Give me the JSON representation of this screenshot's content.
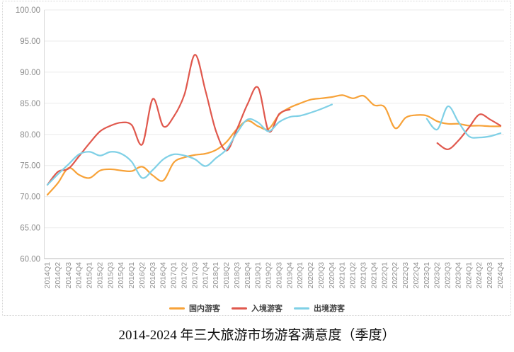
{
  "caption": "2014-2024 年三大旅游市场游客满意度（季度）",
  "chart_data": {
    "type": "line",
    "title": "",
    "legend_position": "bottom",
    "grid": true,
    "x_axis": {
      "label_rotation": -90,
      "categories": [
        "2014Q1",
        "2014Q2",
        "2014Q3",
        "2014Q4",
        "2015Q1",
        "2015Q2",
        "2015Q3",
        "2015Q4",
        "2016Q1",
        "2016Q2",
        "2016Q3",
        "2016Q4",
        "2017Q1",
        "2017Q2",
        "2017Q3",
        "2017Q4",
        "2018Q1",
        "2018Q2",
        "2018Q3",
        "2018Q4",
        "2019Q1",
        "2019Q2",
        "2019Q3",
        "2019Q4",
        "2020Q1",
        "2020Q2",
        "2020Q3",
        "2020Q4",
        "2021Q1",
        "2021Q2",
        "2021Q3",
        "2021Q4",
        "2022Q1",
        "2022Q2",
        "2022Q3",
        "2022Q4",
        "2023Q1",
        "2023Q2",
        "2023Q3",
        "2023Q4",
        "2024Q1",
        "2024Q2",
        "2024Q3",
        "2024Q4"
      ]
    },
    "y_axis": {
      "min": 60,
      "max": 100,
      "tick_step": 5,
      "tick_labels": [
        "100.00",
        "95.00",
        "90.00",
        "85.00",
        "80.00",
        "75.00",
        "70.00",
        "65.00",
        "60.00"
      ]
    },
    "series": [
      {
        "id": "domestic",
        "name": "国内游客",
        "color": "#F7A238",
        "values": [
          70.3,
          72.2,
          74.6,
          73.5,
          73.0,
          74.2,
          74.4,
          74.2,
          74.1,
          74.8,
          73.4,
          72.6,
          75.5,
          76.3,
          76.7,
          76.9,
          77.5,
          78.8,
          80.9,
          82.2,
          81.3,
          80.9,
          83.2,
          84.3,
          85.0,
          85.6,
          85.8,
          86.0,
          86.3,
          85.8,
          86.2,
          84.7,
          84.4,
          81.0,
          82.7,
          83.1,
          83.0,
          82.1,
          81.7,
          81.7,
          81.4,
          81.4,
          81.3,
          81.3
        ]
      },
      {
        "id": "inbound",
        "name": "入境游客",
        "color": "#E0584D",
        "values": [
          71.9,
          74.0,
          74.5,
          76.5,
          78.6,
          80.5,
          81.4,
          81.9,
          81.5,
          78.4,
          85.7,
          81.3,
          82.9,
          86.4,
          92.8,
          87.0,
          80.5,
          77.4,
          80.9,
          84.9,
          87.5,
          80.5,
          83.3,
          84.0,
          null,
          null,
          null,
          null,
          null,
          null,
          null,
          null,
          null,
          null,
          null,
          null,
          null,
          78.6,
          77.6,
          79.0,
          81.1,
          83.2,
          82.4,
          81.4
        ]
      },
      {
        "id": "outbound",
        "name": "出境游客",
        "color": "#7FD0E6",
        "values": [
          71.9,
          73.6,
          75.2,
          76.8,
          77.2,
          76.6,
          77.2,
          76.9,
          75.6,
          73.0,
          74.3,
          76.0,
          76.8,
          76.6,
          76.0,
          74.9,
          76.2,
          77.6,
          80.3,
          82.4,
          81.9,
          80.5,
          82.0,
          82.8,
          83.0,
          83.5,
          84.1,
          84.8,
          null,
          null,
          null,
          null,
          null,
          null,
          null,
          null,
          82.5,
          80.8,
          84.5,
          82.0,
          79.7,
          79.5,
          79.7,
          80.2
        ]
      }
    ],
    "style": {
      "gridline_color": "#ebebeb",
      "axis_color": "#b7b7b7",
      "y_axis_line_color": "#d9d9d9",
      "frame_border_color": "#d6d6d6",
      "label_color": "#8c8c8c"
    }
  }
}
